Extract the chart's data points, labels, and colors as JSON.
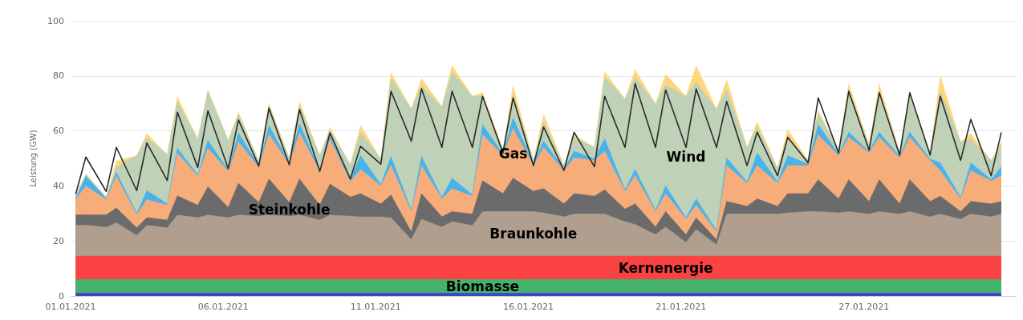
{
  "chart_data": {
    "type": "area",
    "ylabel": "Leistung (GW)",
    "stacked": true,
    "grid": "y",
    "marker": "none",
    "xlim": [
      "2021-01-01",
      "2021-02-01"
    ],
    "ylim": [
      0,
      100
    ],
    "yticks": [
      0,
      20,
      40,
      60,
      80,
      100
    ],
    "xticks": [
      {
        "value": "2021-01-01",
        "label": "01.01.2021"
      },
      {
        "value": "2021-01-06",
        "label": "06.01.2021"
      },
      {
        "value": "2021-01-11",
        "label": "11.01.2021"
      },
      {
        "value": "2021-01-16",
        "label": "16.01.2021"
      },
      {
        "value": "2021-01-21",
        "label": "21.01.2021"
      },
      {
        "value": "2021-01-27",
        "label": "27.01.2021"
      }
    ],
    "x": [
      "2021-01-01T04:00",
      "2021-01-01T12:00",
      "2021-01-02T04:00",
      "2021-01-02T12:00",
      "2021-01-03T04:00",
      "2021-01-03T12:00",
      "2021-01-04T04:00",
      "2021-01-04T12:00",
      "2021-01-05T04:00",
      "2021-01-05T12:00",
      "2021-01-06T04:00",
      "2021-01-06T12:00",
      "2021-01-07T04:00",
      "2021-01-07T12:00",
      "2021-01-08T04:00",
      "2021-01-08T12:00",
      "2021-01-09T04:00",
      "2021-01-09T12:00",
      "2021-01-10T04:00",
      "2021-01-10T12:00",
      "2021-01-11T04:00",
      "2021-01-11T12:00",
      "2021-01-12T04:00",
      "2021-01-12T12:00",
      "2021-01-13T04:00",
      "2021-01-13T12:00",
      "2021-01-14T04:00",
      "2021-01-14T12:00",
      "2021-01-15T04:00",
      "2021-01-15T12:00",
      "2021-01-16T04:00",
      "2021-01-16T12:00",
      "2021-01-17T04:00",
      "2021-01-17T12:00",
      "2021-01-18T04:00",
      "2021-01-18T12:00",
      "2021-01-19T04:00",
      "2021-01-19T12:00",
      "2021-01-20T04:00",
      "2021-01-20T12:00",
      "2021-01-21T04:00",
      "2021-01-21T12:00",
      "2021-01-22T04:00",
      "2021-01-22T12:00",
      "2021-01-23T04:00",
      "2021-01-23T12:00",
      "2021-01-24T04:00",
      "2021-01-24T12:00",
      "2021-01-25T04:00",
      "2021-01-25T12:00",
      "2021-01-26T04:00",
      "2021-01-26T12:00",
      "2021-01-27T04:00",
      "2021-01-27T12:00",
      "2021-01-28T04:00",
      "2021-01-28T12:00",
      "2021-01-29T04:00",
      "2021-01-29T12:00",
      "2021-01-30T04:00",
      "2021-01-30T12:00",
      "2021-01-31T04:00",
      "2021-01-31T12:00"
    ],
    "series": [
      {
        "color": "#3c44c8",
        "values": [
          1,
          1,
          1,
          1,
          1,
          1,
          1,
          1,
          1,
          1,
          1,
          1,
          1,
          1,
          1,
          1,
          1,
          1,
          1,
          1,
          1,
          1,
          1,
          1,
          1,
          1,
          1,
          1,
          1,
          1,
          1,
          1,
          1,
          1,
          1,
          1,
          1,
          1,
          1,
          1,
          1,
          1,
          1,
          1,
          1,
          1,
          1,
          1,
          1,
          1,
          1,
          1,
          1,
          1,
          1,
          1,
          1,
          1,
          1,
          1,
          1,
          1
        ]
      },
      {
        "name": "Biomasse",
        "color": "#45b36b",
        "values": [
          5,
          5,
          5,
          5,
          5,
          5,
          5,
          5,
          5,
          5,
          5,
          5,
          5,
          5,
          5,
          5,
          5,
          5,
          5,
          5,
          5,
          5,
          5,
          5,
          5,
          5,
          5,
          5,
          5,
          5,
          5,
          5,
          5,
          5,
          5,
          5,
          5,
          5,
          5,
          5,
          5,
          5,
          5,
          5,
          5,
          5,
          5,
          5,
          5,
          5,
          5,
          5,
          5,
          5,
          5,
          5,
          5,
          5,
          5,
          5,
          5,
          5
        ]
      },
      {
        "name": "Kernenergie",
        "color": "#fc4343",
        "values": [
          8.5,
          8.5,
          8.5,
          8.5,
          8.5,
          8.5,
          8.5,
          8.5,
          8.5,
          8.5,
          8.5,
          8.5,
          8.5,
          8.5,
          8.5,
          8.5,
          8.5,
          8.5,
          8.5,
          8.5,
          8.5,
          8.5,
          8.5,
          8.5,
          8.5,
          8.5,
          8.5,
          8.5,
          8.5,
          8.5,
          8.5,
          8.5,
          8.5,
          8.5,
          8.5,
          8.5,
          8.5,
          8.5,
          8.5,
          8.5,
          8.5,
          8.5,
          8.5,
          8.5,
          8.5,
          8.5,
          8.5,
          8.5,
          8.5,
          8.5,
          8.5,
          8.5,
          8.5,
          8.5,
          8.5,
          8.5,
          8.5,
          8.5,
          8.5,
          8.5,
          8.5,
          8.5
        ]
      },
      {
        "name": "Braunkohle",
        "color": "#b09f8e",
        "values": [
          11.2,
          11.2,
          10.5,
          12.1,
          7.5,
          11.2,
          10.3,
          14.9,
          14,
          14.9,
          14,
          14.9,
          14.5,
          14.9,
          14.5,
          14.9,
          13.1,
          14.9,
          14.5,
          14.3,
          14.3,
          13.9,
          6,
          13.4,
          10.6,
          12.5,
          11.1,
          16.2,
          16.2,
          16.2,
          16.2,
          15.7,
          14.3,
          15.3,
          15.3,
          15.3,
          12.5,
          11.5,
          7.8,
          10.6,
          5,
          9.7,
          4.1,
          15.3,
          15.3,
          15.3,
          15.3,
          15.7,
          16.2,
          16.2,
          15.7,
          16.2,
          15.3,
          16.2,
          15.3,
          16.2,
          14.3,
          15.3,
          13.4,
          15.3,
          14.3,
          15.3
        ]
      },
      {
        "name": "Steinkohle",
        "color": "#6b6b6b",
        "values": [
          3.8,
          3.8,
          4.5,
          5.4,
          2.8,
          2.8,
          2.8,
          7,
          4.5,
          10.3,
          3.7,
          11.6,
          5,
          13.1,
          5,
          13.1,
          5.4,
          11.3,
          7,
          8.4,
          4.7,
          8.3,
          2.8,
          9.3,
          3.7,
          3.7,
          4.2,
          11.2,
          6.5,
          12.1,
          7.4,
          8.8,
          4.7,
          7.4,
          6.5,
          8.8,
          4.6,
          7.5,
          2.8,
          5.6,
          2.8,
          4.2,
          1.9,
          4.6,
          2.8,
          5.5,
          2.8,
          7,
          6.5,
          11.6,
          5.1,
          11.6,
          4.6,
          11.6,
          3.7,
          11.6,
          5.6,
          6.5,
          2.8,
          4.6,
          4.7,
          4.6
        ]
      },
      {
        "name": "Gas",
        "color": "#f6ad7a",
        "values": [
          5.5,
          10.5,
          5.5,
          11.5,
          4.7,
          6.5,
          5.4,
          15.5,
          10.5,
          14,
          13.1,
          15,
          12.7,
          16.4,
          13.7,
          16.8,
          12.3,
          16.3,
          5.6,
          8.8,
          6.5,
          10.7,
          7.4,
          10.2,
          6.5,
          8.3,
          6.5,
          16.7,
          13.8,
          18.1,
          9.3,
          15,
          12.1,
          13,
          13,
          14,
          6.5,
          10.2,
          5.6,
          6.5,
          5.6,
          4.6,
          2.8,
          13,
          8.4,
          12.1,
          8.4,
          10.2,
          10.2,
          16.3,
          15.7,
          15.4,
          17.6,
          15.4,
          16.7,
          15.4,
          14.9,
          9.3,
          4.6,
          11.2,
          8.3,
          9.3
        ]
      },
      {
        "color": "#47b3ec",
        "values": [
          0.5,
          3.5,
          0.5,
          1.5,
          0.5,
          3.3,
          0.5,
          1.8,
          0.5,
          2.8,
          0.5,
          3.3,
          0.5,
          3.1,
          0.5,
          3.3,
          0.5,
          1.4,
          0.5,
          5,
          0.5,
          3.3,
          0.5,
          3.3,
          0.5,
          3.8,
          0.5,
          3.7,
          0.5,
          3.8,
          0.5,
          2.3,
          0.5,
          2.4,
          0.5,
          4.6,
          0.5,
          2.3,
          0.5,
          2.8,
          0.5,
          2.3,
          0.5,
          2.8,
          0.5,
          4.6,
          0.5,
          3.6,
          0.5,
          3.7,
          0.5,
          1.8,
          0.5,
          1.8,
          0.5,
          1.8,
          0.5,
          2.8,
          0.5,
          2.8,
          0.5,
          3.3
        ]
      },
      {
        "name": "Wind",
        "color": "#bfd2b8",
        "values": [
          1,
          0.5,
          0.5,
          2,
          21,
          19.2,
          17.9,
          16.9,
          13,
          17.8,
          10.7,
          6.7,
          1.8,
          7.2,
          1.8,
          6.6,
          5.2,
          1.9,
          5.6,
          8.5,
          9.3,
          28.3,
          36.8,
          25.6,
          33,
          38.6,
          35.8,
          10.3,
          1.5,
          8.3,
          1.4,
          7,
          1.3,
          5.1,
          4.2,
          22.3,
          33,
          33.5,
          38.6,
          36.7,
          44.2,
          42.4,
          44.1,
          24.7,
          12.5,
          9.4,
          5,
          6.7,
          1.4,
          4.2,
          1.5,
          14.9,
          2.5,
          14.9,
          1.3,
          13.1,
          2.2,
          26,
          20.2,
          8.6,
          7,
          8
        ]
      },
      {
        "color": "#fed87a",
        "values": [
          0,
          0.5,
          0,
          2,
          0,
          1.5,
          0,
          1.8,
          0,
          0.7,
          0,
          0.8,
          0,
          0.8,
          0,
          1.4,
          0,
          0.9,
          0,
          2.5,
          0,
          2,
          0,
          2.7,
          0,
          2.3,
          0,
          1.4,
          0,
          3.3,
          0,
          2.7,
          0,
          0.9,
          0,
          1.9,
          0,
          2.8,
          0,
          3.8,
          0,
          6,
          0,
          3.7,
          0,
          1.9,
          0,
          2.8,
          0,
          0.9,
          0,
          2.6,
          0,
          2.6,
          0,
          0.9,
          0,
          5.6,
          0,
          2,
          0,
          1
        ]
      },
      {
        "type": "line",
        "color": "#2b2b2b",
        "values": [
          37,
          50.5,
          38,
          54,
          38.3,
          55.6,
          42,
          66.8,
          46.7,
          67.3,
          46.3,
          64,
          47.2,
          68.2,
          47.7,
          67.8,
          45.3,
          59.3,
          42.5,
          54.4,
          47.9,
          74.4,
          56.3,
          75.3,
          54,
          74.4,
          54,
          72.6,
          52,
          72,
          47.4,
          61.4,
          45.6,
          59.5,
          47,
          72.6,
          54,
          77.2,
          54,
          74.9,
          54,
          75.3,
          54,
          70.7,
          47.4,
          59.5,
          43.7,
          57.7,
          48.4,
          72,
          52,
          74.4,
          53,
          73.9,
          51.2,
          73.9,
          51.2,
          72.6,
          49.3,
          64.2,
          43.7,
          59.5
        ]
      }
    ]
  }
}
